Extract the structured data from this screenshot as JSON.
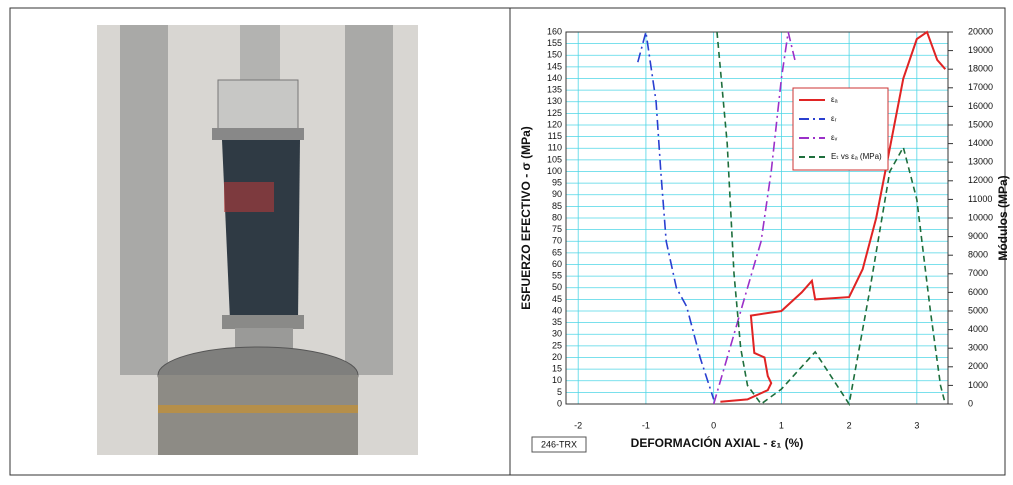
{
  "chart_data": {
    "type": "line",
    "xlabel": "DEFORMACIÓN AXIAL - ε₁ (%)",
    "ylabel": "ESFUERZO EFECTIVO - σ (MPa)",
    "y2label": "Módulos (MPa)",
    "annotation": "246-TRX",
    "xlim": [
      -2.18,
      3.46
    ],
    "xticks": [
      -2,
      -1,
      0,
      1,
      2,
      3
    ],
    "ylim": [
      0,
      160
    ],
    "yticks": [
      0,
      5,
      10,
      15,
      20,
      25,
      30,
      35,
      40,
      45,
      50,
      55,
      60,
      65,
      70,
      75,
      80,
      85,
      90,
      95,
      100,
      105,
      110,
      115,
      120,
      125,
      130,
      135,
      140,
      145,
      150,
      155,
      160
    ],
    "y2lim": [
      0,
      20000
    ],
    "y2ticks": [
      0,
      1000,
      2000,
      3000,
      4000,
      5000,
      6000,
      7000,
      8000,
      9000,
      10000,
      11000,
      12000,
      13000,
      14000,
      15000,
      16000,
      17000,
      18000,
      19000,
      20000
    ],
    "grid": true,
    "legend": "upper right",
    "series": [
      {
        "name": "εₐ",
        "color": "#e02424",
        "style": "solid",
        "x": [
          0.1,
          0.5,
          0.8,
          0.85,
          0.8,
          0.75,
          0.6,
          0.55,
          1.0,
          1.3,
          1.45,
          1.5,
          2.0,
          2.2,
          2.4,
          2.6,
          2.8,
          3.0,
          3.15,
          3.3,
          3.42
        ],
        "values": [
          1,
          2,
          6,
          9,
          12,
          20,
          22,
          38,
          40,
          48,
          53,
          45,
          46,
          58,
          80,
          110,
          140,
          157,
          160,
          148,
          144
        ]
      },
      {
        "name": "εᵣ",
        "color": "#2a3fd0",
        "style": "dashdot",
        "x": [
          -1.12,
          -1.0,
          -0.85,
          -0.78,
          -0.7,
          -0.55,
          -0.4,
          -0.2,
          0.0
        ],
        "values": [
          147,
          160,
          130,
          100,
          70,
          50,
          42,
          20,
          2
        ]
      },
      {
        "name": "εᵥ",
        "color": "#9b30c8",
        "style": "dashdot",
        "x": [
          0.0,
          0.3,
          0.5,
          0.7,
          0.85,
          1.0,
          1.1,
          1.2
        ],
        "values": [
          0,
          30,
          50,
          70,
          100,
          140,
          160,
          148
        ]
      },
      {
        "name": "Eₜ vs εₐ (MPa)",
        "color": "#1e6e3c",
        "style": "dashed",
        "axis": "y2",
        "x": [
          0.05,
          0.2,
          0.3,
          0.4,
          0.5,
          0.7,
          1.0,
          1.5,
          2.0,
          2.3,
          2.6,
          2.8,
          3.0,
          3.2,
          3.35,
          3.42
        ],
        "values": [
          20000,
          14000,
          7000,
          3000,
          1000,
          0,
          800,
          2800,
          0,
          6000,
          12500,
          13800,
          11000,
          5000,
          1000,
          0
        ]
      }
    ]
  }
}
